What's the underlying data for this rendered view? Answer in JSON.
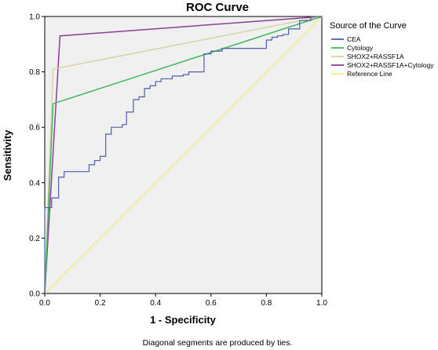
{
  "chart_data": {
    "type": "line",
    "title": "ROC Curve",
    "xlabel": "1 - Specificity",
    "ylabel": "Sensitivity",
    "xlim": [
      0,
      1
    ],
    "ylim": [
      0,
      1
    ],
    "xticks": [
      "0.0",
      "0.2",
      "0.4",
      "0.6",
      "0.8",
      "1.0"
    ],
    "yticks": [
      "0.0",
      "0.2",
      "0.4",
      "0.6",
      "0.8",
      "1.0"
    ],
    "grid": false,
    "legend": {
      "title": "Source of the Curve",
      "placement": "right"
    },
    "footnote": "Diagonal segments are produced by ties.",
    "series": [
      {
        "name": "CEA",
        "color": "#4e5ea9",
        "points": [
          [
            0,
            0
          ],
          [
            0,
            0.31
          ],
          [
            0.025,
            0.31
          ],
          [
            0.025,
            0.345
          ],
          [
            0.05,
            0.345
          ],
          [
            0.05,
            0.42
          ],
          [
            0.07,
            0.42
          ],
          [
            0.07,
            0.44
          ],
          [
            0.16,
            0.44
          ],
          [
            0.16,
            0.465
          ],
          [
            0.18,
            0.465
          ],
          [
            0.18,
            0.48
          ],
          [
            0.2,
            0.48
          ],
          [
            0.2,
            0.495
          ],
          [
            0.22,
            0.495
          ],
          [
            0.22,
            0.575
          ],
          [
            0.24,
            0.575
          ],
          [
            0.24,
            0.6
          ],
          [
            0.28,
            0.6
          ],
          [
            0.28,
            0.61
          ],
          [
            0.295,
            0.61
          ],
          [
            0.295,
            0.655
          ],
          [
            0.32,
            0.655
          ],
          [
            0.32,
            0.7
          ],
          [
            0.34,
            0.7
          ],
          [
            0.34,
            0.71
          ],
          [
            0.36,
            0.71
          ],
          [
            0.36,
            0.74
          ],
          [
            0.38,
            0.74
          ],
          [
            0.38,
            0.75
          ],
          [
            0.4,
            0.75
          ],
          [
            0.4,
            0.765
          ],
          [
            0.42,
            0.765
          ],
          [
            0.42,
            0.775
          ],
          [
            0.46,
            0.775
          ],
          [
            0.46,
            0.785
          ],
          [
            0.5,
            0.785
          ],
          [
            0.5,
            0.79
          ],
          [
            0.52,
            0.79
          ],
          [
            0.52,
            0.8
          ],
          [
            0.575,
            0.8
          ],
          [
            0.575,
            0.865
          ],
          [
            0.6,
            0.865
          ],
          [
            0.6,
            0.875
          ],
          [
            0.64,
            0.875
          ],
          [
            0.64,
            0.885
          ],
          [
            0.8,
            0.885
          ],
          [
            0.8,
            0.915
          ],
          [
            0.82,
            0.915
          ],
          [
            0.82,
            0.925
          ],
          [
            0.84,
            0.925
          ],
          [
            0.84,
            0.93
          ],
          [
            0.86,
            0.93
          ],
          [
            0.86,
            0.935
          ],
          [
            0.88,
            0.935
          ],
          [
            0.88,
            0.955
          ],
          [
            0.92,
            0.955
          ],
          [
            0.92,
            0.985
          ],
          [
            0.96,
            0.985
          ],
          [
            0.96,
            1
          ],
          [
            1,
            1
          ]
        ]
      },
      {
        "name": "Cytology",
        "color": "#3fb85b",
        "points": [
          [
            0,
            0
          ],
          [
            0.03,
            0.685
          ],
          [
            1,
            1
          ]
        ]
      },
      {
        "name": "SHOX2+RASSF1A",
        "color": "#d6d3a9",
        "points": [
          [
            0,
            0
          ],
          [
            0.03,
            0.81
          ],
          [
            1,
            1
          ]
        ]
      },
      {
        "name": "SHOX2+RASSF1A+Cytology",
        "color": "#8f3c94",
        "points": [
          [
            0,
            0
          ],
          [
            0.055,
            0.93
          ],
          [
            1,
            1
          ]
        ]
      },
      {
        "name": "Reference Line",
        "color": "#f4ef7a",
        "points": [
          [
            0,
            0
          ],
          [
            1,
            1
          ]
        ]
      }
    ]
  }
}
